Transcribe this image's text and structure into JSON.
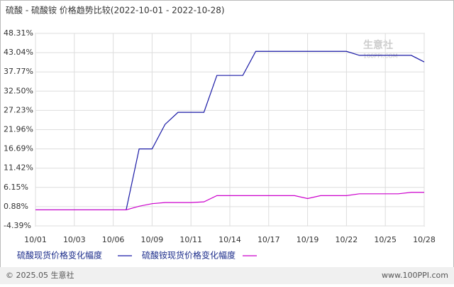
{
  "chart_data": {
    "type": "line",
    "title": "硫酸 - 硫酸铵 价格趋势比较(2022-10-01 - 2022-10-28)",
    "categories": [
      "10/01",
      null,
      null,
      "10/03",
      null,
      null,
      "10/06",
      null,
      null,
      "10/09",
      null,
      null,
      "10/11",
      null,
      null,
      "10/14",
      null,
      null,
      "10/17",
      null,
      null,
      "10/19",
      null,
      null,
      "10/22",
      null,
      null,
      "10/25",
      null,
      null,
      "10/28"
    ],
    "series": [
      {
        "name": "硫酸现货价格变化幅度",
        "color": "#1a1aa6",
        "values": [
          0,
          0,
          0,
          0,
          0,
          0,
          0,
          0,
          16.69,
          16.69,
          23.4,
          26.7,
          26.7,
          26.7,
          36.8,
          36.8,
          36.8,
          43.4,
          43.4,
          43.4,
          43.4,
          43.4,
          43.4,
          43.4,
          43.4,
          42.3,
          42.3,
          42.3,
          42.3,
          42.3,
          40.5
        ]
      },
      {
        "name": "硫酸铵现货价格变化幅度",
        "color": "#cc00cc",
        "values": [
          0,
          0,
          0,
          0,
          0,
          0,
          0,
          0,
          1.0,
          1.7,
          2.0,
          2.0,
          2.0,
          2.2,
          3.9,
          3.9,
          3.9,
          3.9,
          3.9,
          3.9,
          3.9,
          3.1,
          3.9,
          3.9,
          3.9,
          4.4,
          4.4,
          4.4,
          4.4,
          4.8,
          4.8
        ]
      }
    ],
    "ylim": [
      -4.39,
      48.31
    ],
    "yticks": [
      {
        "value": -4.39,
        "label": "-4.39%"
      },
      {
        "value": 0.88,
        "label": "0.88%"
      },
      {
        "value": 6.15,
        "label": "6.15%"
      },
      {
        "value": 11.42,
        "label": "11.42%"
      },
      {
        "value": 16.69,
        "label": "16.69%"
      },
      {
        "value": 21.96,
        "label": "21.96%"
      },
      {
        "value": 27.23,
        "label": "27.23%"
      },
      {
        "value": 32.5,
        "label": "32.50%"
      },
      {
        "value": 37.77,
        "label": "37.77%"
      },
      {
        "value": 43.04,
        "label": "43.04%"
      },
      {
        "value": 48.31,
        "label": "48.31%"
      }
    ],
    "grid": true,
    "watermark": "生意社",
    "watermark_sub": "100PPI.COM"
  },
  "footer": {
    "left": "© 2025.05 生意社",
    "right": "www.100PPI.com"
  }
}
